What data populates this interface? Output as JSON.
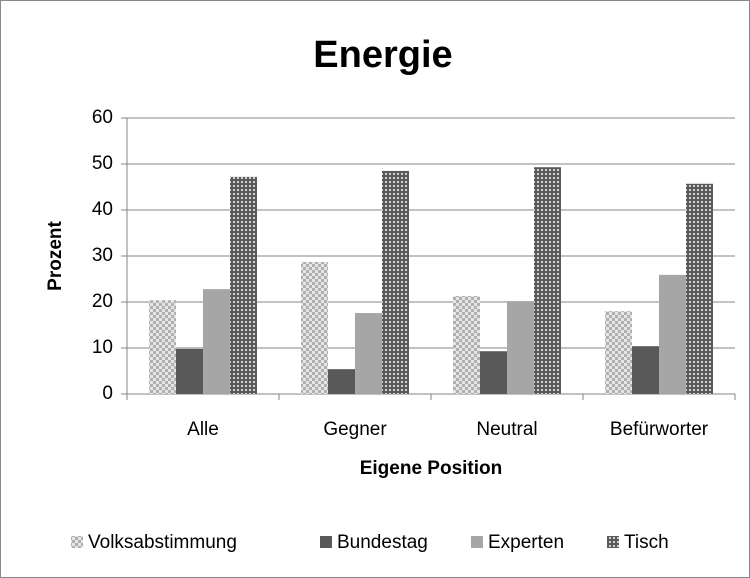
{
  "chart_data": {
    "type": "bar",
    "title": "Energie",
    "x_label": "Eigene Position",
    "y_label": "Prozent",
    "categories": [
      "Alle",
      "Gegner",
      "Neutral",
      "Befürworter"
    ],
    "series": [
      {
        "name": "Volksabstimmung",
        "color": "#bfbfbf",
        "pattern": "checker",
        "values": [
          20.4,
          28.7,
          21.3,
          18.0
        ]
      },
      {
        "name": "Bundestag",
        "color": "#595959",
        "pattern": "solid",
        "values": [
          9.8,
          5.4,
          9.3,
          10.4
        ]
      },
      {
        "name": "Experten",
        "color": "#a6a6a6",
        "pattern": "solid",
        "values": [
          22.8,
          17.6,
          20.2,
          25.9
        ]
      },
      {
        "name": "Tisch",
        "color": "#7f7f7f",
        "pattern": "grid",
        "values": [
          47.2,
          48.5,
          49.3,
          45.7
        ]
      }
    ],
    "ylim": [
      0,
      60
    ],
    "yticks": [
      0,
      10,
      20,
      30,
      40,
      50,
      60
    ],
    "grid": true,
    "legend": "bottom"
  }
}
